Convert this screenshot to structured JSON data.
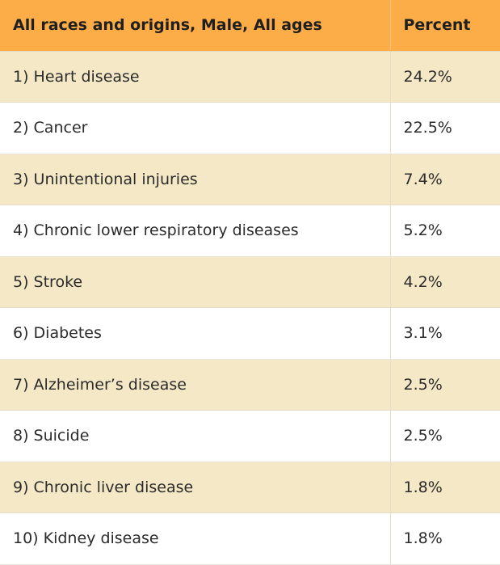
{
  "table": {
    "header": {
      "cause": "All races and origins, Male, All ages",
      "percent": "Percent"
    },
    "rows": [
      {
        "cause": "1) Heart disease",
        "percent": "24.2%"
      },
      {
        "cause": "2) Cancer",
        "percent": "22.5%"
      },
      {
        "cause": "3) Unintentional injuries",
        "percent": "7.4%"
      },
      {
        "cause": "4) Chronic lower respiratory diseases",
        "percent": "5.2%"
      },
      {
        "cause": "5) Stroke",
        "percent": "4.2%"
      },
      {
        "cause": "6) Diabetes",
        "percent": "3.1%"
      },
      {
        "cause": "7) Alzheimer’s disease",
        "percent": "2.5%"
      },
      {
        "cause": "8) Suicide",
        "percent": "2.5%"
      },
      {
        "cause": "9) Chronic liver disease",
        "percent": "1.8%"
      },
      {
        "cause": "10) Kidney disease",
        "percent": "1.8%"
      }
    ]
  },
  "colors": {
    "header_bg": "#fdad47",
    "stripe_bg": "#f5e8c6",
    "plain_bg": "#ffffff"
  }
}
